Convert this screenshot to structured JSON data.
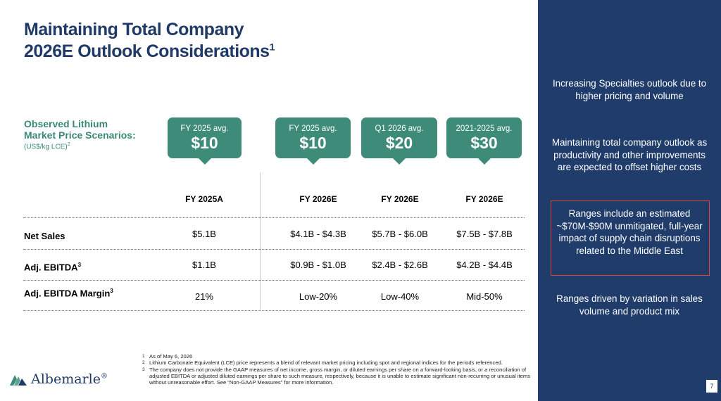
{
  "title": {
    "line1": "Maintaining Total Company",
    "line2": "2026E Outlook Considerations",
    "sup": "1"
  },
  "scenarios": {
    "title_line1": "Observed Lithium",
    "title_line2": "Market Price Scenarios:",
    "unit": "(US$/kg LCE)",
    "unit_sup": "2"
  },
  "bubbles": [
    {
      "label": "FY 2025 avg.",
      "value": "$10"
    },
    {
      "label": "FY 2025 avg.",
      "value": "$10"
    },
    {
      "label": "Q1 2026 avg.",
      "value": "$20"
    },
    {
      "label": "2021-2025 avg.",
      "value": "$30"
    }
  ],
  "table": {
    "headers": [
      "FY 2025A",
      "FY 2026E",
      "FY 2026E",
      "FY 2026E"
    ],
    "rows": [
      {
        "label": "Net Sales",
        "sup": "",
        "values": [
          "$5.1B",
          "$4.1B - $4.3B",
          "$5.7B - $6.0B",
          "$7.5B - $7.8B"
        ]
      },
      {
        "label": "Adj. EBITDA",
        "sup": "3",
        "values": [
          "$1.1B",
          "$0.9B - $1.0B",
          "$2.4B - $2.6B",
          "$4.2B - $4.4B"
        ]
      },
      {
        "label": "Adj. EBITDA Margin",
        "sup": "3",
        "values": [
          "21%",
          "Low-20%",
          "Low-40%",
          "Mid-50%"
        ]
      }
    ]
  },
  "footnotes": [
    {
      "num": "1",
      "text": "As of May 6, 2026"
    },
    {
      "num": "2",
      "text": "Lithium Carbonate Equivalent (LCE) price represents a blend of relevant market pricing including spot and regional indices for the periods referenced."
    },
    {
      "num": "3",
      "text": "The company does not provide the GAAP measures of net income, gross margin, or diluted earnings per share on a forward-looking basis, or a reconciliation of adjusted EBITDA or adjusted diluted earnings per share to such measure, respectively, because it is unable to estimate significant non-recurring or unusual items without unreasonable effort. See “Non-GAAP Measures” for more information."
    }
  ],
  "logo": {
    "name": "Albemarle",
    "mark": "®"
  },
  "panel": {
    "items": [
      "Increasing Specialties outlook due to higher pricing and volume",
      "Maintaining total company outlook as productivity and other improvements are expected to offset higher costs",
      "Ranges include an estimated ~$70M-$90M unmitigated, full-year impact of supply chain disruptions related to the Middle East",
      "Ranges driven by variation in sales volume and product mix"
    ]
  },
  "page_number": "7",
  "colors": {
    "navy": "#1f3c6b",
    "teal": "#3d8b78",
    "highlight_border": "#d9473b"
  }
}
